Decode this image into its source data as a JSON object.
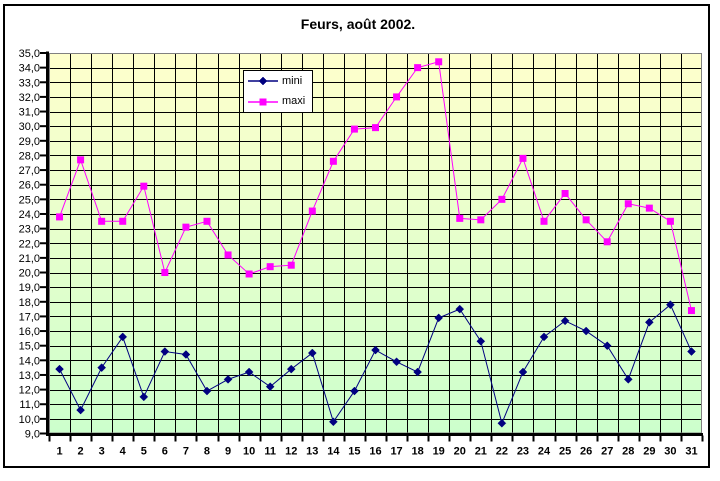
{
  "window": {
    "background": "#ffffff",
    "border_color": "#000000"
  },
  "chart_data": {
    "type": "line",
    "title": "Feurs, août 2002.",
    "categories": [
      "1",
      "2",
      "3",
      "4",
      "5",
      "6",
      "7",
      "8",
      "9",
      "10",
      "11",
      "12",
      "13",
      "14",
      "15",
      "16",
      "17",
      "18",
      "19",
      "20",
      "21",
      "22",
      "23",
      "24",
      "25",
      "26",
      "27",
      "28",
      "29",
      "30",
      "31"
    ],
    "series": [
      {
        "name": "mini",
        "color": "#000080",
        "marker": "diamond",
        "values": [
          13.4,
          10.6,
          13.5,
          15.6,
          11.5,
          14.6,
          14.4,
          11.9,
          12.7,
          13.2,
          12.2,
          13.4,
          14.5,
          9.8,
          11.9,
          14.7,
          13.9,
          13.2,
          16.9,
          17.5,
          15.3,
          9.7,
          13.2,
          15.6,
          16.7,
          16.0,
          15.0,
          12.7,
          16.6,
          17.8,
          14.6
        ]
      },
      {
        "name": "maxi",
        "color": "#FF00FF",
        "marker": "square",
        "values": [
          23.8,
          27.7,
          23.5,
          23.5,
          25.9,
          20.0,
          23.1,
          23.5,
          21.2,
          19.9,
          20.4,
          20.5,
          24.2,
          27.6,
          29.8,
          29.9,
          32.0,
          34.0,
          34.4,
          23.7,
          23.6,
          25.0,
          27.8,
          23.5,
          25.4,
          23.6,
          22.1,
          24.7,
          24.4,
          23.5,
          17.4
        ]
      }
    ],
    "ylim": [
      9,
      35
    ],
    "y_tick_step": 1.0,
    "y_tick_labels": [
      "35,0",
      "34,0",
      "33,0",
      "32,0",
      "31,0",
      "30,0",
      "29,0",
      "28,0",
      "27,0",
      "26,0",
      "25,0",
      "24,0",
      "23,0",
      "22,0",
      "21,0",
      "20,0",
      "19,0",
      "18,0",
      "17,0",
      "16,0",
      "15,0",
      "14,0",
      "13,0",
      "12,0",
      "11,0",
      "10,0",
      "9,0"
    ],
    "grid": true,
    "legend_position": "top-center",
    "colors": {
      "plot_bg_top": "#FFFFCC",
      "plot_bg_bottom": "#CCFFCC",
      "gridline": "#000000",
      "plot_border": "#808080",
      "axis": "#000000",
      "label_text": "#000000"
    }
  }
}
